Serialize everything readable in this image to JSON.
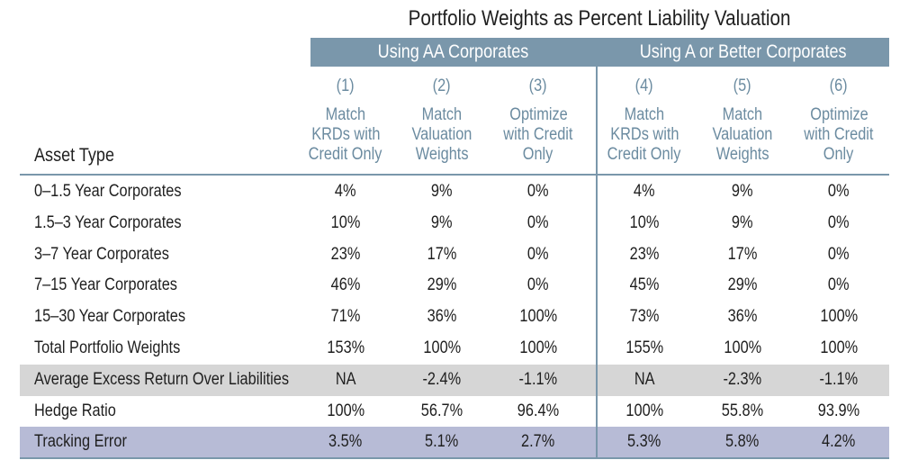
{
  "title": "Portfolio Weights as Percent Liability Valuation",
  "groups": {
    "aa": "Using AA Corporates",
    "a": "Using A or Better Corporates"
  },
  "columns": [
    {
      "num": "(1)",
      "desc": [
        "Match",
        "KRDs with",
        "Credit Only"
      ]
    },
    {
      "num": "(2)",
      "desc": [
        "Match",
        "Valuation",
        "Weights"
      ]
    },
    {
      "num": "(3)",
      "desc": [
        "Optimize",
        "with Credit",
        "Only"
      ]
    },
    {
      "num": "(4)",
      "desc": [
        "Match",
        "KRDs with",
        "Credit Only"
      ]
    },
    {
      "num": "(5)",
      "desc": [
        "Match",
        "Valuation",
        "Weights"
      ]
    },
    {
      "num": "(6)",
      "desc": [
        "Optimize",
        "with Credit",
        "Only"
      ]
    }
  ],
  "row_header": "Asset Type",
  "rows": [
    {
      "label": "0–1.5 Year Corporates",
      "values": [
        "4%",
        "9%",
        "0%",
        "4%",
        "9%",
        "0%"
      ]
    },
    {
      "label": "1.5–3 Year Corporates",
      "values": [
        "10%",
        "9%",
        "0%",
        "10%",
        "9%",
        "0%"
      ]
    },
    {
      "label": "3–7 Year Corporates",
      "values": [
        "23%",
        "17%",
        "0%",
        "23%",
        "17%",
        "0%"
      ]
    },
    {
      "label": "7–15 Year Corporates",
      "values": [
        "46%",
        "29%",
        "0%",
        "45%",
        "29%",
        "0%"
      ]
    },
    {
      "label": "15–30 Year Corporates",
      "values": [
        "71%",
        "36%",
        "100%",
        "73%",
        "36%",
        "100%"
      ]
    },
    {
      "label": "Total Portfolio Weights",
      "values": [
        "153%",
        "100%",
        "100%",
        "155%",
        "100%",
        "100%"
      ]
    },
    {
      "label": "Average Excess Return Over Liabilities",
      "values": [
        "NA",
        "-2.4%",
        "-1.1%",
        "NA",
        "-2.3%",
        "-1.1%"
      ]
    },
    {
      "label": "Hedge Ratio",
      "values": [
        "100%",
        "56.7%",
        "96.4%",
        "100%",
        "55.8%",
        "93.9%"
      ]
    },
    {
      "label": "Tracking Error",
      "values": [
        "3.5%",
        "5.1%",
        "2.7%",
        "5.3%",
        "5.8%",
        "4.2%"
      ]
    }
  ],
  "colors": {
    "header_band": "#7a97ab",
    "column_head_text": "#6b8ba0",
    "shade_gray": "#d6d6d6",
    "shade_blue": "#b7bbd6"
  }
}
